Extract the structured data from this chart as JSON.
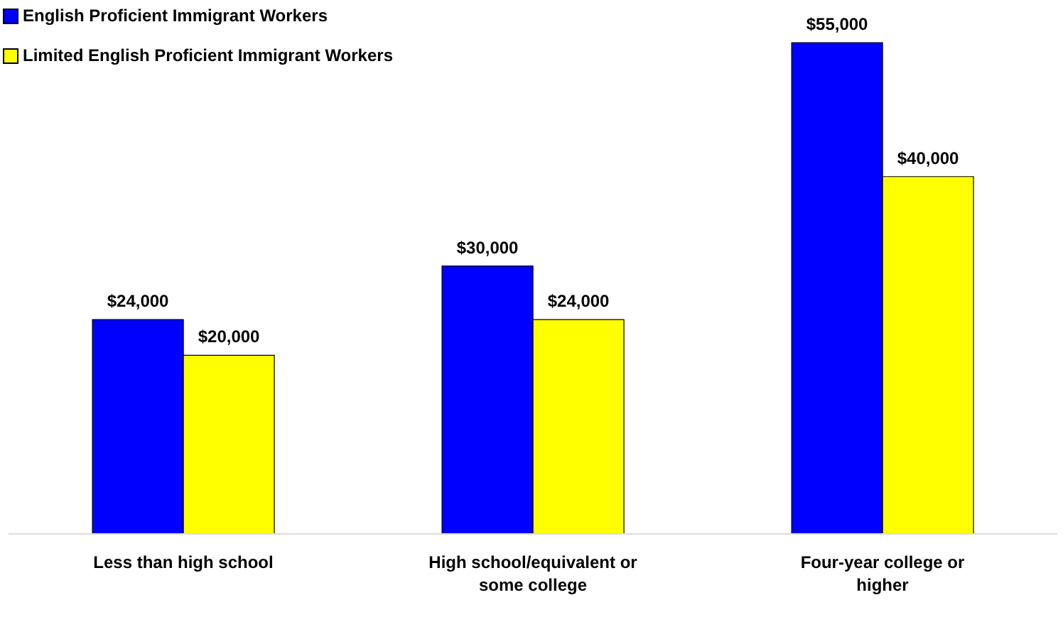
{
  "chart_data": {
    "type": "bar",
    "categories": [
      "Less than high school",
      "High school/equivalent or some college",
      "Four-year college or higher"
    ],
    "series": [
      {
        "name": "English Proficient Immigrant Workers",
        "color": "#0000ff",
        "values": [
          24000,
          30000,
          55000
        ],
        "value_labels": [
          "$24,000",
          "$30,000",
          "$55,000"
        ]
      },
      {
        "name": "Limited English Proficient Immigrant Workers",
        "color": "#ffff00",
        "values": [
          20000,
          24000,
          40000
        ],
        "value_labels": [
          "$20,000",
          "$24,000",
          "$40,000"
        ]
      }
    ],
    "legend": "top left"
  }
}
